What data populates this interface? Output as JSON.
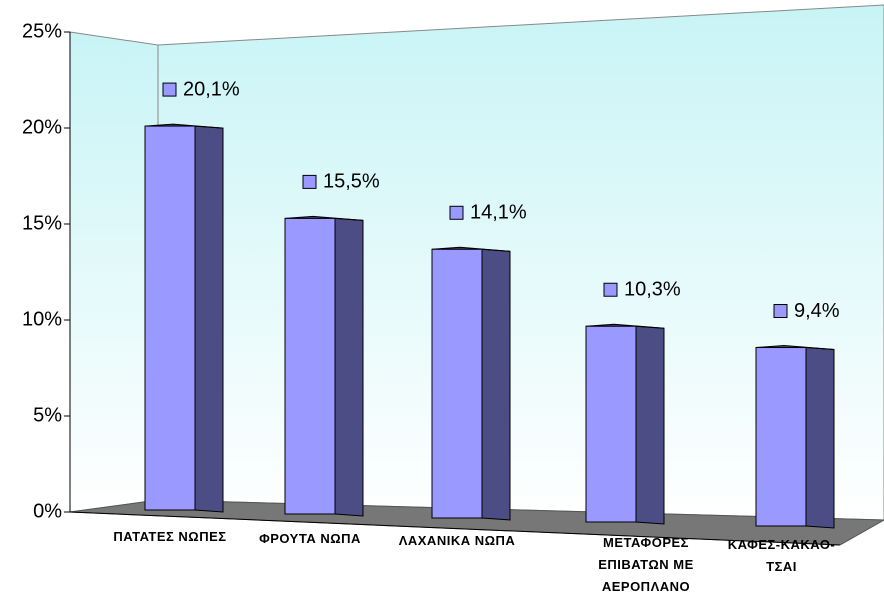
{
  "chart_data": {
    "type": "bar3d",
    "categories": [
      "ΠΑΤΑΤΕΣ ΝΩΠΕΣ",
      "ΦΡΟΥΤΑ ΝΩΠΑ",
      "ΛΑΧΑΝΙΚΑ ΝΩΠΑ",
      "ΜΕΤΑΦΟΡΕΣ ΕΠΙΒΑΤΩΝ ΜΕ ΑΕΡΟΠΛΑΝΟ",
      "ΚΑΦΕΣ-ΚΑΚΑΟ-ΤΣΑΙ"
    ],
    "values": [
      20.1,
      15.5,
      14.1,
      10.3,
      9.4
    ],
    "value_labels": [
      "20,1%",
      "15,5%",
      "14,1%",
      "10,3%",
      "9,4%"
    ],
    "color": "#9999ff",
    "side_color": "#4d4d85",
    "ylim": [
      0,
      25
    ],
    "yticks": [
      {
        "value": 0,
        "label": "0%"
      },
      {
        "value": 5,
        "label": "5%"
      },
      {
        "value": 10,
        "label": "10%"
      },
      {
        "value": 15,
        "label": "15%"
      },
      {
        "value": 20,
        "label": "20%"
      },
      {
        "value": 25,
        "label": "25%"
      }
    ]
  }
}
